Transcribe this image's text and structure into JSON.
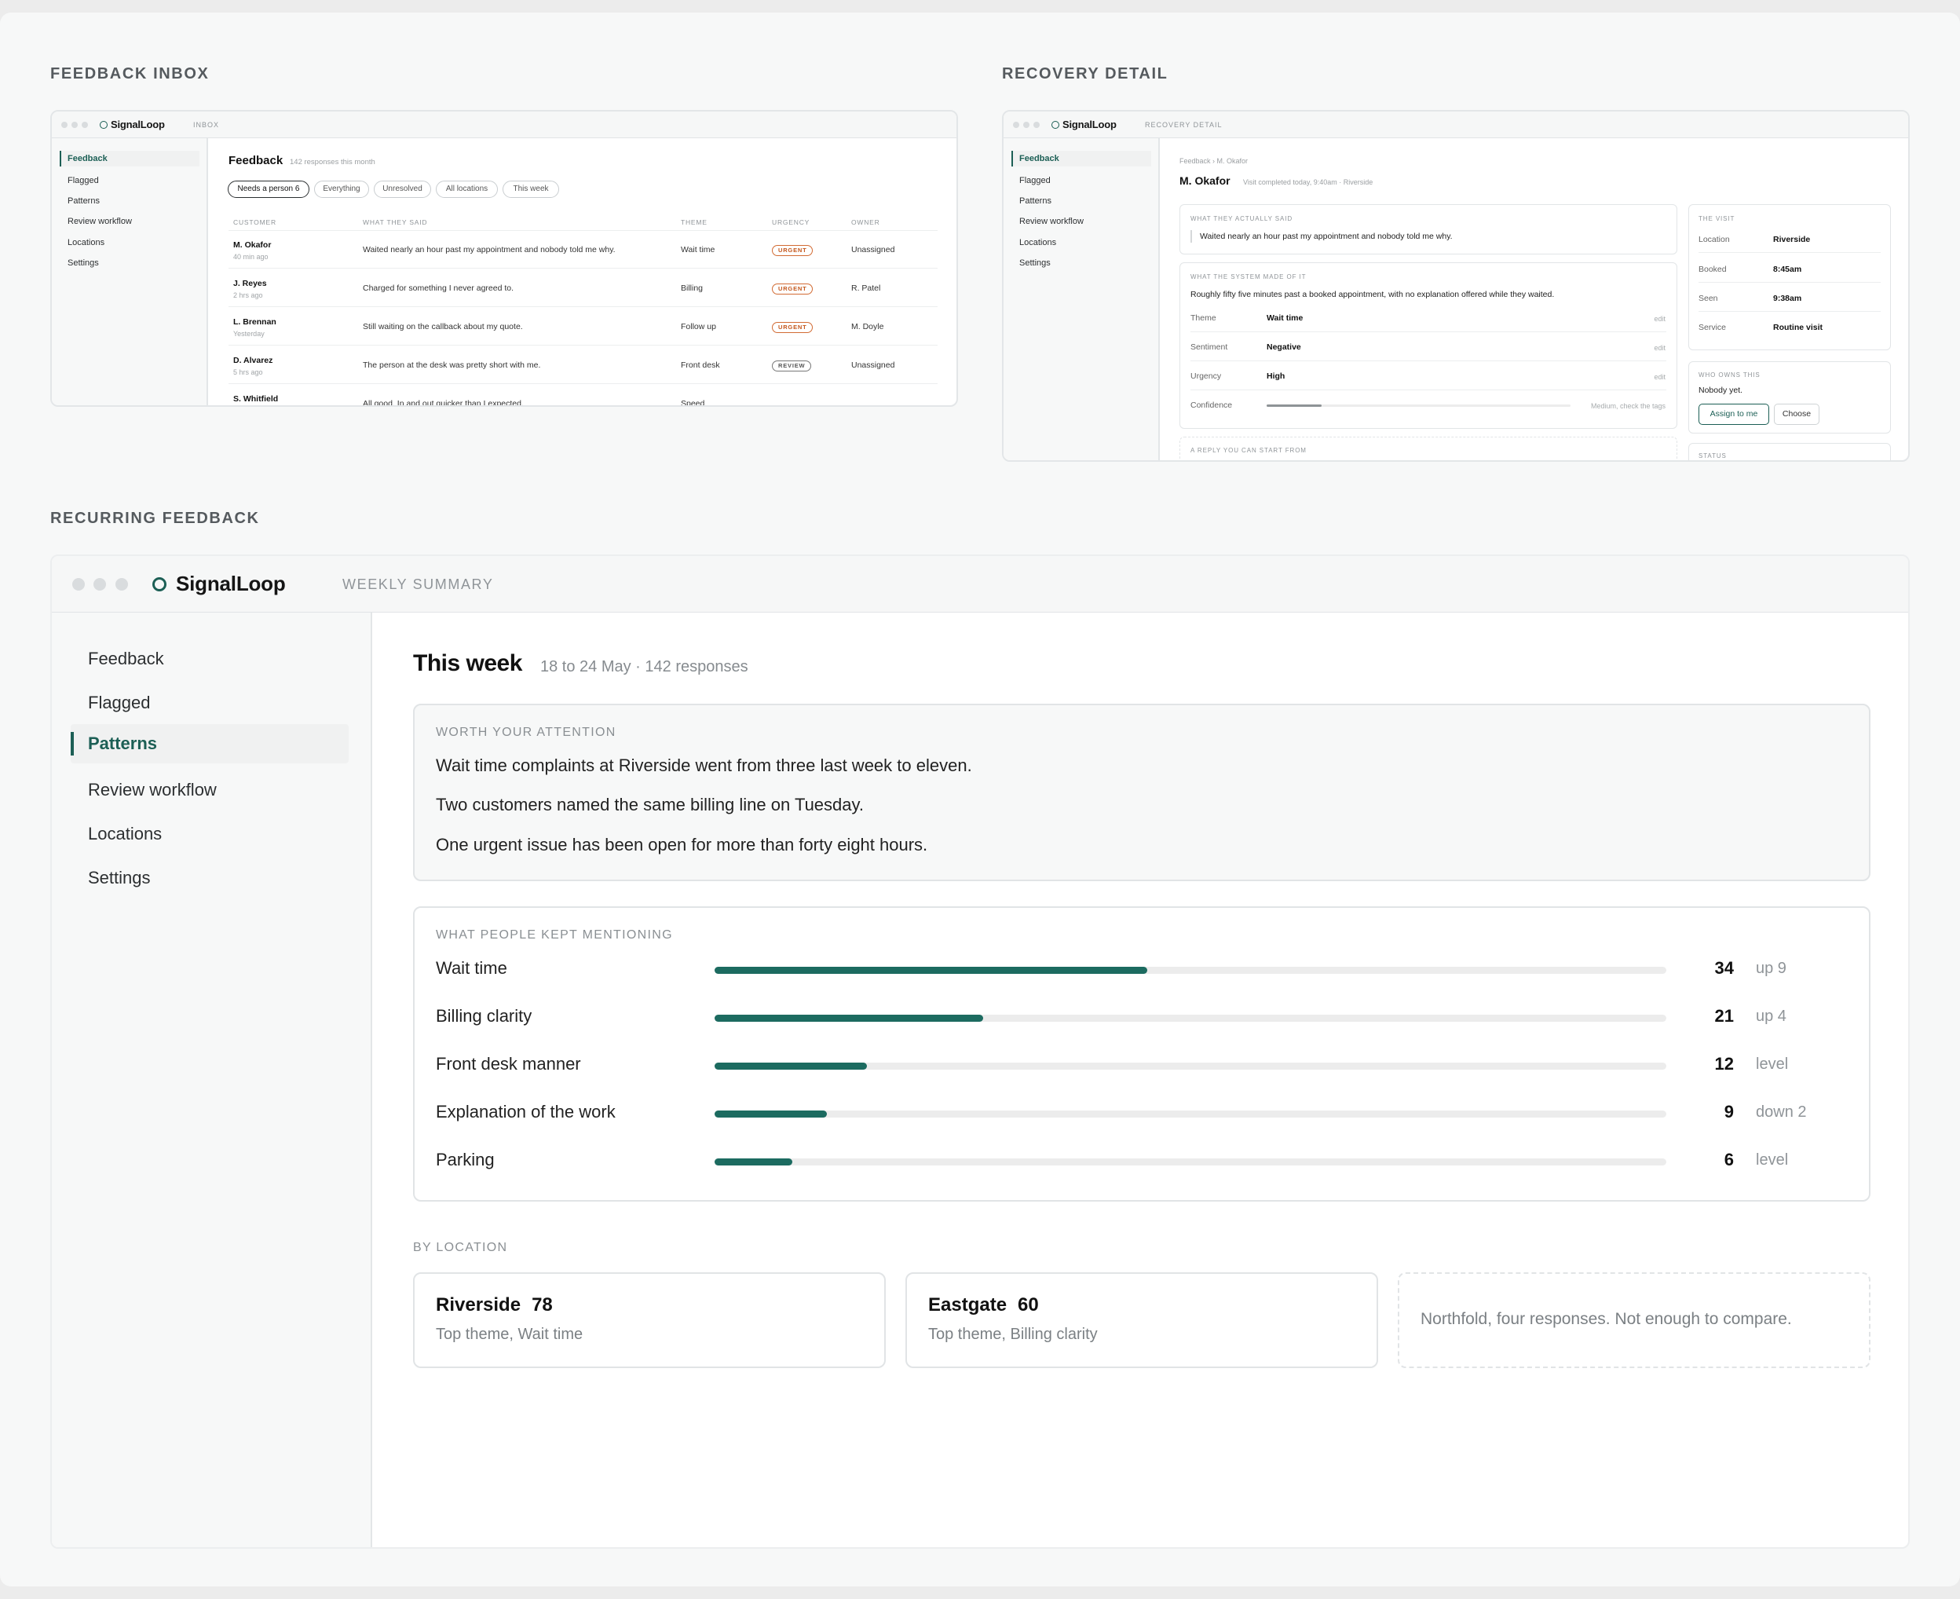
{
  "sections": {
    "inbox": "FEEDBACK INBOX",
    "detail": "RECOVERY DETAIL",
    "recurring": "RECURRING FEEDBACK"
  },
  "brand": "SignalLoop",
  "nav": [
    "Feedback",
    "Flagged",
    "Patterns",
    "Review workflow",
    "Locations",
    "Settings"
  ],
  "inbox": {
    "crumb": "INBOX",
    "title": "Feedback",
    "subtitle": "142 responses this month",
    "filters": [
      "Needs a person 6",
      "Everything",
      "Unresolved",
      "All locations",
      "This week"
    ],
    "columns": [
      "CUSTOMER",
      "WHAT THEY SAID",
      "THEME",
      "URGENCY",
      "OWNER"
    ],
    "rows": [
      {
        "name": "M. Okafor",
        "when": "40 min ago",
        "said": "Waited nearly an hour past my appointment and nobody told me why.",
        "theme": "Wait time",
        "badge": "URGENT",
        "owner": "Unassigned"
      },
      {
        "name": "J. Reyes",
        "when": "2 hrs ago",
        "said": "Charged for something I never agreed to.",
        "theme": "Billing",
        "badge": "URGENT",
        "owner": "R. Patel"
      },
      {
        "name": "L. Brennan",
        "when": "Yesterday",
        "said": "Still waiting on the callback about my quote.",
        "theme": "Follow up",
        "badge": "URGENT",
        "owner": "M. Doyle"
      },
      {
        "name": "D. Alvarez",
        "when": "5 hrs ago",
        "said": "The person at the desk was pretty short with me.",
        "theme": "Front desk",
        "badge": "REVIEW",
        "owner": "Unassigned"
      },
      {
        "name": "S. Whitfield",
        "when": "",
        "said": "All good. In and out quicker than I expected.",
        "theme": "Speed",
        "badge": "",
        "owner": ""
      }
    ]
  },
  "detail": {
    "crumb": "RECOVERY DETAIL",
    "breadcrumb": "Feedback › M. Okafor",
    "name": "M. Okafor",
    "visit_note": "Visit completed today, 9:40am · Riverside",
    "said_label": "WHAT THEY ACTUALLY SAID",
    "said": "Waited nearly an hour past my appointment and nobody told me why.",
    "system_label": "WHAT THE SYSTEM MADE OF IT",
    "system_text": "Roughly fifty five minutes past a booked appointment, with no explanation offered while they waited.",
    "fields": [
      {
        "k": "Theme",
        "v": "Wait time",
        "edit": "edit"
      },
      {
        "k": "Sentiment",
        "v": "Negative",
        "edit": "edit"
      },
      {
        "k": "Urgency",
        "v": "High",
        "edit": "edit"
      }
    ],
    "confidence_label": "Confidence",
    "confidence_value": 0.18,
    "confidence_note": "Medium, check the tags",
    "reply_label": "A REPLY YOU CAN START FROM",
    "visit_label": "THE VISIT",
    "visit": [
      {
        "k": "Location",
        "v": "Riverside"
      },
      {
        "k": "Booked",
        "v": "8:45am"
      },
      {
        "k": "Seen",
        "v": "9:38am"
      },
      {
        "k": "Service",
        "v": "Routine visit"
      }
    ],
    "owner_label": "WHO OWNS THIS",
    "owner_text": "Nobody yet.",
    "assign_btn": "Assign to me",
    "choose_btn": "Choose",
    "status_label": "STATUS"
  },
  "weekly": {
    "crumb": "WEEKLY SUMMARY",
    "title": "This week",
    "subtitle": "18 to 24 May · 142 responses",
    "attention_label": "WORTH YOUR ATTENTION",
    "attention": [
      "Wait time complaints at Riverside went from three last week to eleven.",
      "Two customers named the same billing line on Tuesday.",
      "One urgent issue has been open for more than forty eight hours."
    ],
    "mentions_label": "WHAT PEOPLE KEPT MENTIONING",
    "themes": [
      {
        "name": "Wait time",
        "count": "34",
        "delta": "up 9",
        "level": 0.455
      },
      {
        "name": "Billing clarity",
        "count": "21",
        "delta": "up 4",
        "level": 0.282
      },
      {
        "name": "Front desk manner",
        "count": "12",
        "delta": "level",
        "level": 0.16
      },
      {
        "name": "Explanation of the work",
        "count": "9",
        "delta": "down 2",
        "level": 0.118
      },
      {
        "name": "Parking",
        "count": "6",
        "delta": "level",
        "level": 0.082
      }
    ],
    "location_label": "BY LOCATION",
    "locations": [
      {
        "name": "Riverside",
        "count": "78",
        "top": "Top theme, Wait time"
      },
      {
        "name": "Eastgate",
        "count": "60",
        "top": "Top theme, Billing clarity"
      }
    ],
    "northfold": "Northfold, four responses. Not enough to compare."
  },
  "colors": {
    "accent": "#1c5f55",
    "bar": "#1c6b60",
    "urgent": "#c4561b"
  }
}
